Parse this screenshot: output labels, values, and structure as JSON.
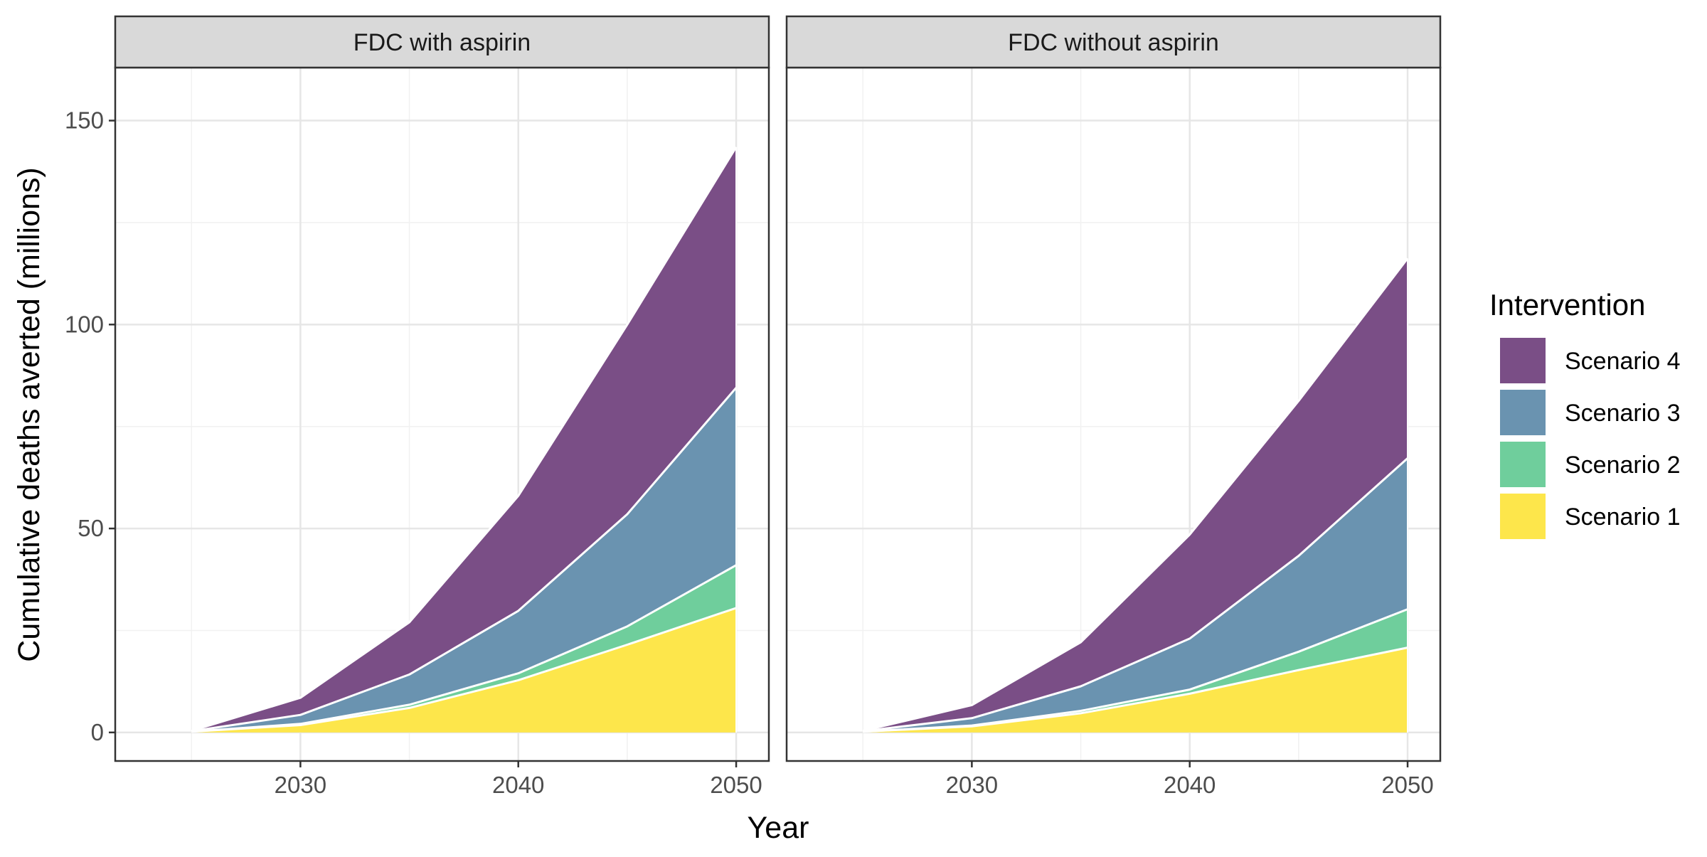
{
  "chart_data": {
    "type": "area",
    "stacked": true,
    "xlabel": "Year",
    "ylabel": "Cumulative deaths averted (millions)",
    "xlim": [
      2021.5,
      2051.5
    ],
    "ylim": [
      -7,
      163
    ],
    "x_ticks": [
      2030,
      2040,
      2050
    ],
    "y_ticks": [
      0,
      50,
      100,
      150
    ],
    "x_minor_ticks": [
      2025,
      2035,
      2045
    ],
    "y_minor_ticks": [
      25,
      75,
      125
    ],
    "grid": true,
    "legend": {
      "title": "Intervention",
      "position": "right",
      "entries": [
        "Scenario 4",
        "Scenario 3",
        "Scenario 2",
        "Scenario 1"
      ]
    },
    "colors": {
      "Scenario 1": "#FDE64B",
      "Scenario 2": "#6FCE9C",
      "Scenario 3": "#6A93B0",
      "Scenario 4": "#7A4E86"
    },
    "panels": [
      {
        "title": "FDC with aspirin",
        "x": [
          2025,
          2030,
          2035,
          2040,
          2045,
          2050
        ],
        "series": [
          {
            "name": "Scenario 1",
            "values": [
              0.2,
              1.8,
              6.0,
              12.8,
              21.5,
              30.5
            ]
          },
          {
            "name": "Scenario 2",
            "values": [
              0.0,
              0.3,
              0.8,
              1.7,
              4.5,
              10.5
            ]
          },
          {
            "name": "Scenario 3",
            "values": [
              0.1,
              2.2,
              7.4,
              15.3,
              27.5,
              43.5
            ]
          },
          {
            "name": "Scenario 4",
            "values": [
              0.1,
              4.2,
              12.8,
              28.2,
              46.5,
              59.0
            ]
          }
        ]
      },
      {
        "title": "FDC without aspirin",
        "x": [
          2025,
          2030,
          2035,
          2040,
          2045,
          2050
        ],
        "series": [
          {
            "name": "Scenario 1",
            "values": [
              0.2,
              1.5,
              4.7,
              9.5,
              15.3,
              20.8
            ]
          },
          {
            "name": "Scenario 2",
            "values": [
              0.0,
              0.2,
              0.6,
              1.0,
              4.5,
              9.4
            ]
          },
          {
            "name": "Scenario 3",
            "values": [
              0.1,
              1.8,
              6.0,
              12.5,
              23.5,
              37.0
            ]
          },
          {
            "name": "Scenario 4",
            "values": [
              0.1,
              3.2,
              10.8,
              25.5,
              38.0,
              49.0
            ]
          }
        ]
      }
    ]
  }
}
